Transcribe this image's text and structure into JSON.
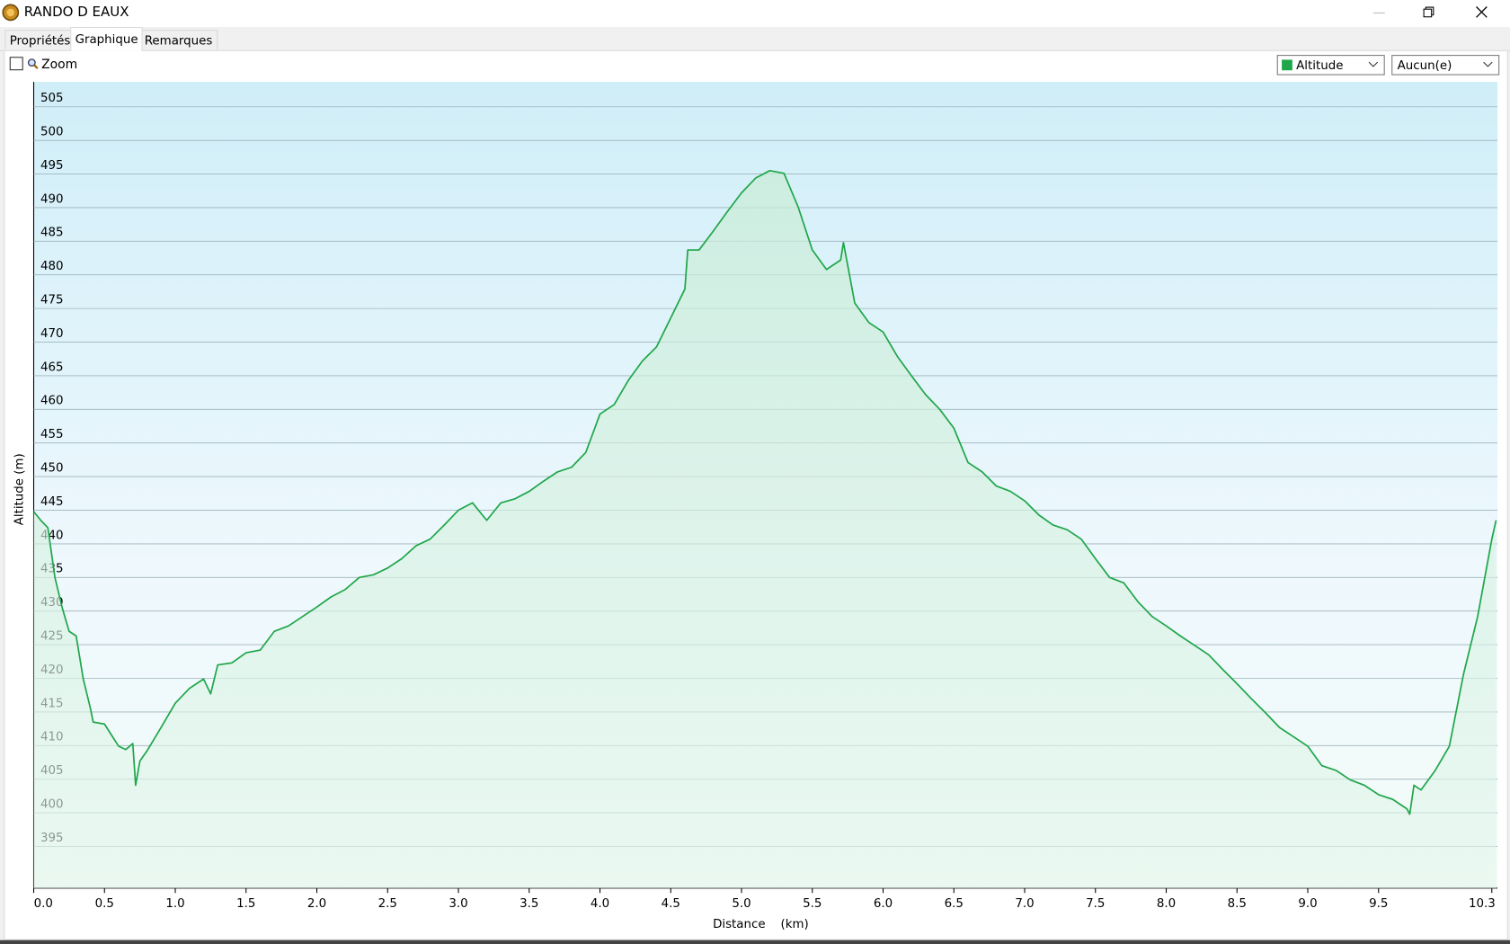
{
  "window": {
    "title": "RANDO D EAUX"
  },
  "tabs": [
    "Propriétés",
    "Graphique",
    "Remarques"
  ],
  "toolbar": {
    "zoom_label": "Zoom",
    "second_select": "Aucun(e)"
  },
  "chart_data": {
    "type": "line",
    "xlabel": "Distance    (km)",
    "ylabel": "Altitude (m)",
    "x": [
      0,
      0.05,
      0.1,
      0.15,
      0.2,
      0.25,
      0.3,
      0.35,
      0.4,
      0.42,
      0.5,
      0.6,
      0.65,
      0.7,
      0.72,
      0.75,
      0.8,
      0.9,
      1.0,
      1.1,
      1.2,
      1.25,
      1.3,
      1.4,
      1.5,
      1.6,
      1.7,
      1.8,
      1.9,
      2.0,
      2.1,
      2.2,
      2.3,
      2.4,
      2.5,
      2.6,
      2.7,
      2.8,
      2.9,
      3.0,
      3.1,
      3.2,
      3.3,
      3.4,
      3.5,
      3.6,
      3.7,
      3.8,
      3.9,
      4.0,
      4.1,
      4.2,
      4.3,
      4.4,
      4.5,
      4.6,
      4.62,
      4.7,
      4.8,
      4.9,
      5.0,
      5.1,
      5.2,
      5.3,
      5.4,
      5.5,
      5.6,
      5.7,
      5.72,
      5.8,
      5.9,
      6.0,
      6.1,
      6.2,
      6.3,
      6.4,
      6.5,
      6.6,
      6.7,
      6.8,
      6.9,
      7.0,
      7.1,
      7.2,
      7.3,
      7.4,
      7.5,
      7.6,
      7.7,
      7.8,
      7.9,
      8.0,
      8.1,
      8.2,
      8.3,
      8.4,
      8.5,
      8.6,
      8.7,
      8.8,
      8.9,
      9.0,
      9.1,
      9.2,
      9.3,
      9.4,
      9.5,
      9.6,
      9.7,
      9.72,
      9.75,
      9.8,
      9.9,
      10.0,
      10.1,
      10.2,
      10.3,
      10.33
    ],
    "series": [
      {
        "name": "Altitude",
        "color": "#1fa64a",
        "values": [
          444.8,
          443.5,
          442.4,
          435,
          430.6,
          427,
          426.3,
          419.9,
          415.6,
          413.5,
          413.2,
          409.9,
          409.4,
          410.3,
          404.1,
          407.7,
          409.2,
          412.7,
          416.3,
          418.5,
          419.9,
          417.7,
          422,
          422.3,
          423.8,
          424.2,
          427,
          427.8,
          429.2,
          430.6,
          432.1,
          433.2,
          435,
          435.4,
          436.4,
          437.8,
          439.7,
          440.7,
          442.8,
          445,
          446.1,
          443.5,
          446.1,
          446.7,
          447.8,
          449.3,
          450.7,
          451.4,
          453.6,
          459.3,
          460.7,
          464.3,
          467.2,
          469.3,
          473.6,
          477.9,
          483.7,
          483.7,
          486.5,
          489.4,
          492.2,
          494.4,
          495.5,
          495.1,
          490.1,
          483.7,
          480.8,
          482.2,
          484.8,
          475.8,
          472.9,
          471.5,
          467.9,
          465,
          462.2,
          460,
          457.2,
          452.1,
          450.7,
          448.6,
          447.8,
          446.4,
          444.3,
          442.8,
          442.1,
          440.7,
          437.8,
          435,
          434.2,
          431.4,
          429.2,
          427.8,
          426.3,
          424.9,
          423.5,
          421.3,
          419.2,
          417,
          414.9,
          412.7,
          411.3,
          409.9,
          407,
          406.3,
          404.9,
          404.1,
          402.7,
          402,
          400.6,
          399.8,
          404.1,
          403.4,
          406.3,
          409.9,
          420.6,
          429.2,
          440.7,
          443.5
        ]
      }
    ],
    "xlim": [
      0,
      10.34
    ],
    "ylim": [
      388.8,
      508.7
    ],
    "xticks": [
      {
        "value": 0,
        "label": "0.0"
      },
      0.5,
      {
        "value": 1,
        "label": "1.0"
      },
      1.5,
      {
        "value": 2,
        "label": "2.0"
      },
      2.5,
      {
        "value": 3,
        "label": "3.0"
      },
      3.5,
      {
        "value": 4,
        "label": "4.0"
      },
      4.5,
      {
        "value": 5,
        "label": "5.0"
      },
      5.5,
      {
        "value": 6,
        "label": "6.0"
      },
      6.5,
      {
        "value": 7,
        "label": "7.0"
      },
      7.5,
      {
        "value": 8,
        "label": "8.0"
      },
      8.5,
      {
        "value": 9,
        "label": "9.0"
      },
      9.5,
      10.3
    ],
    "yticks": [
      395,
      400,
      405,
      410,
      415,
      420,
      425,
      430,
      435,
      440,
      445,
      450,
      455,
      460,
      465,
      470,
      475,
      480,
      485,
      490,
      495,
      500,
      505
    ],
    "grid": true
  }
}
